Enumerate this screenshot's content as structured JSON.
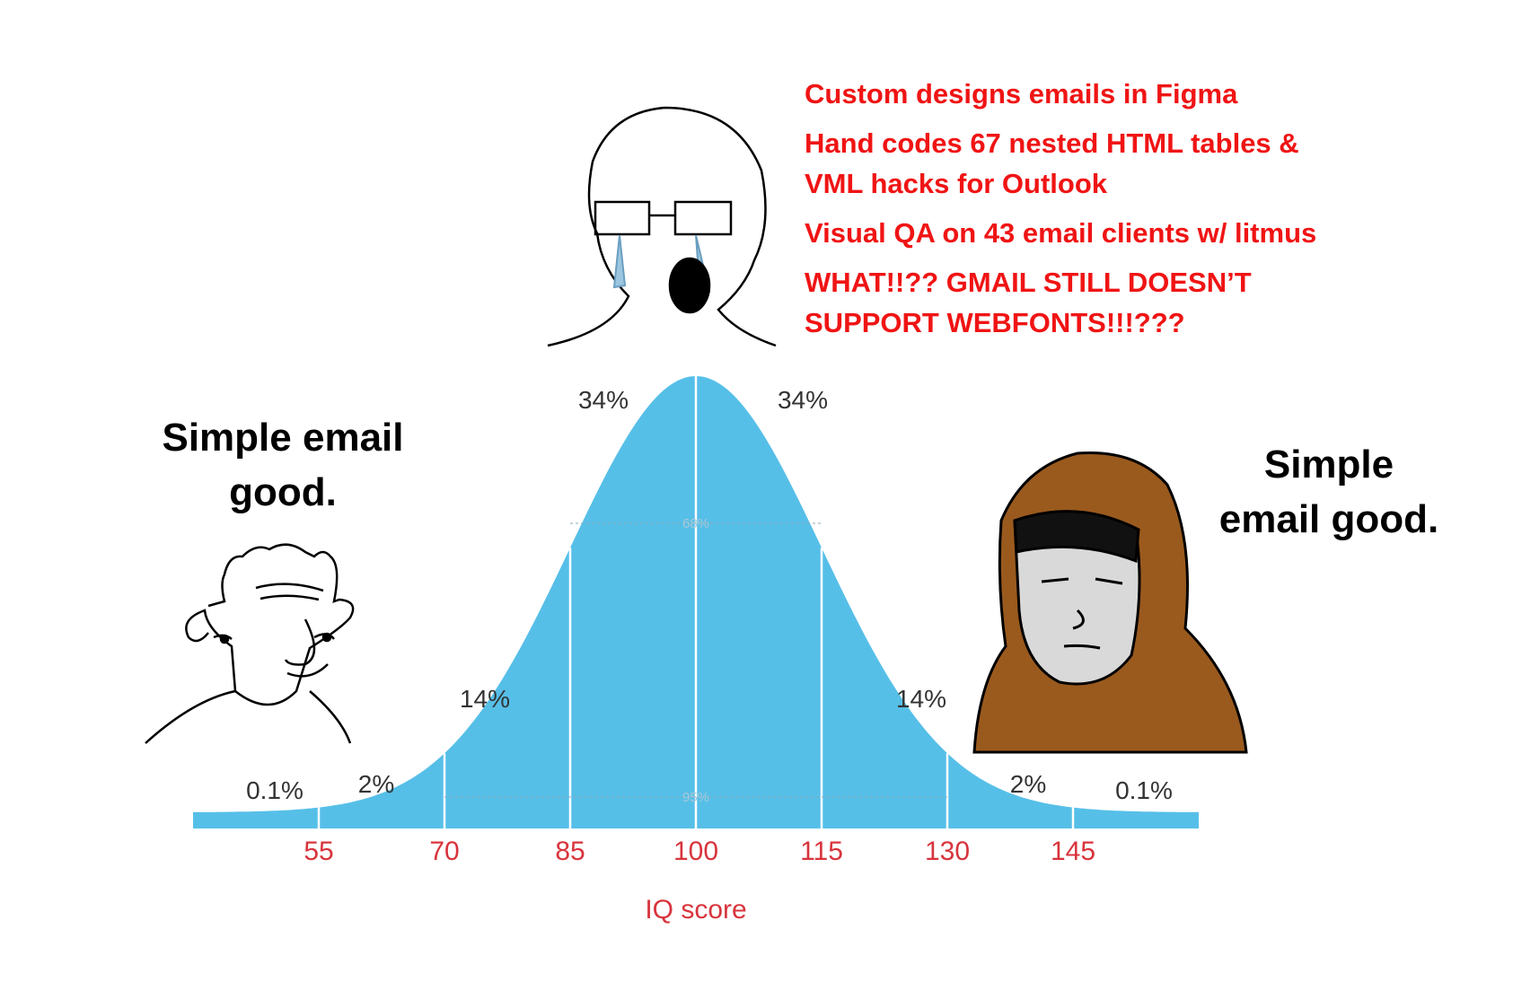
{
  "annotation": {
    "lines": [
      "Custom designs emails in Figma",
      "Hand codes 67 nested HTML tables &",
      "VML hacks for Outlook",
      "Visual QA on 43 email clients w/ litmus",
      "WHAT!!?? GMAIL STILL DOESN’T",
      "SUPPORT WEBFONTS!!!???"
    ]
  },
  "left_caption": {
    "lines": [
      "Simple email",
      "good."
    ]
  },
  "right_caption": {
    "lines": [
      "Simple",
      "email good."
    ]
  },
  "chart": {
    "xlabel": "IQ score",
    "xlim": [
      40,
      160
    ],
    "xticks": [
      55,
      70,
      85,
      100,
      115,
      130,
      145
    ],
    "region_labels": [
      "0.1%",
      "2%",
      "14%",
      "34%",
      "34%",
      "14%",
      "2%",
      "0.1%"
    ],
    "inner_labels": [
      "68%",
      "95%"
    ]
  }
}
